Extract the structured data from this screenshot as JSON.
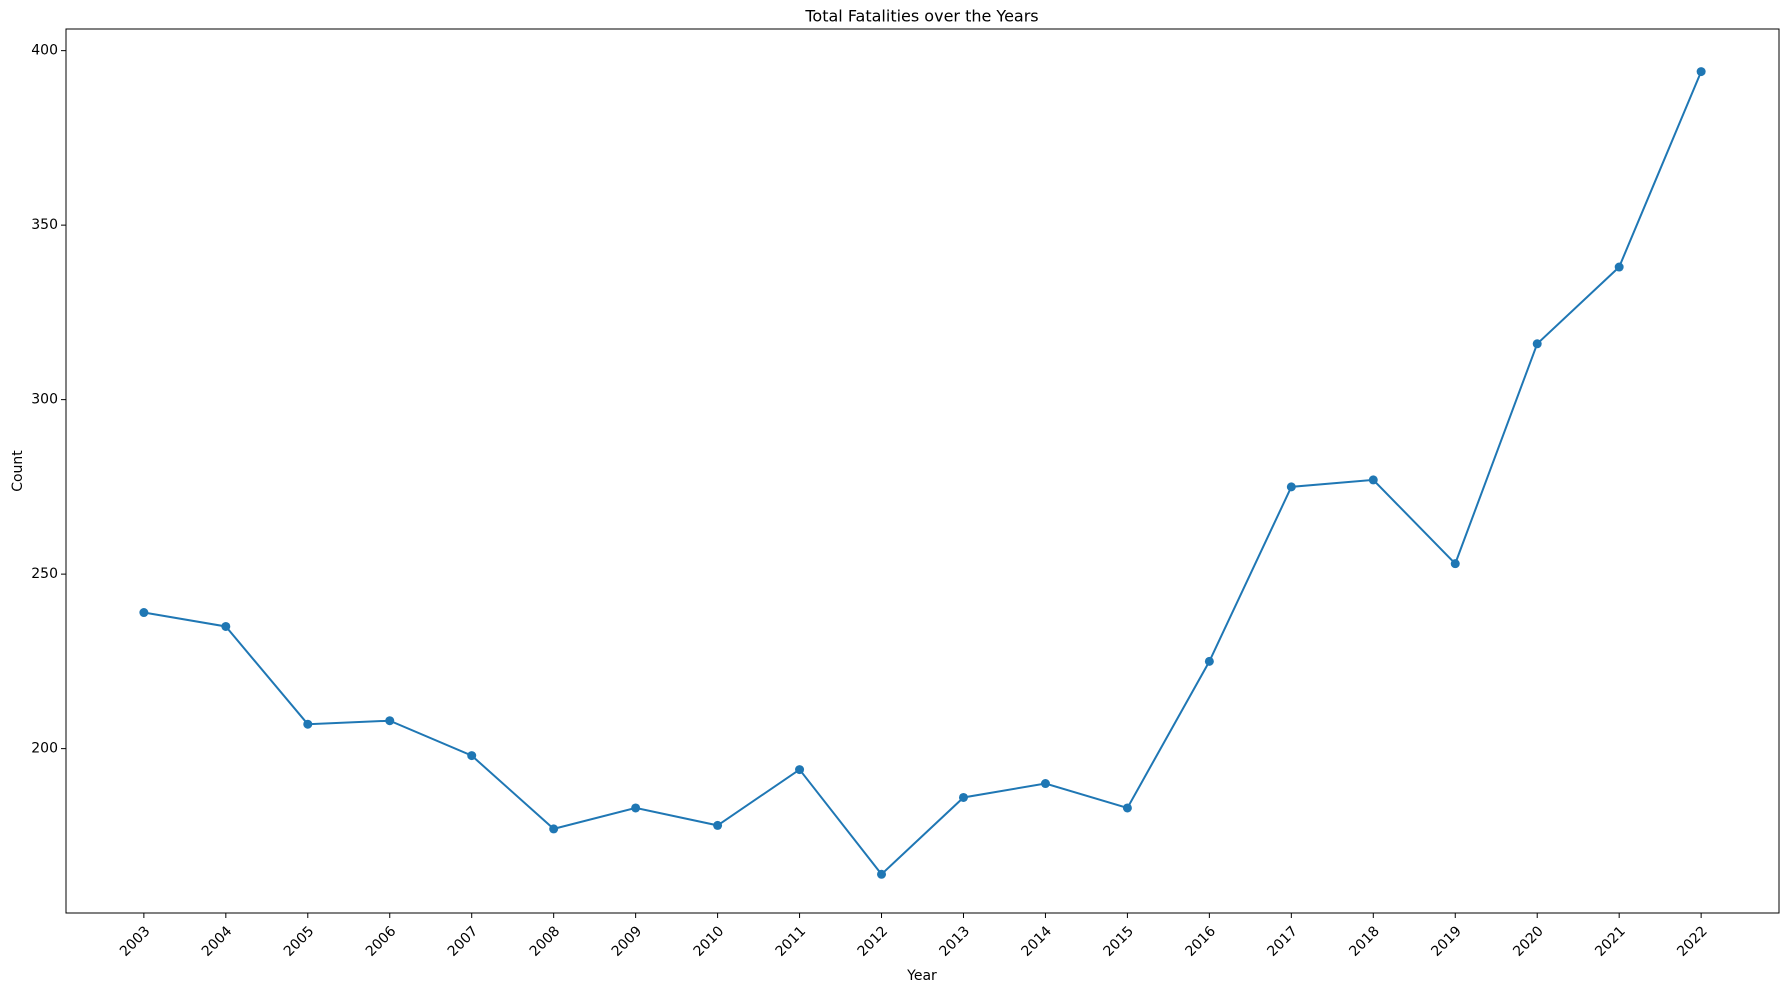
{
  "chart_data": {
    "type": "line",
    "title": "Total Fatalities over the Years",
    "x_label": "Year",
    "y_label": "Count",
    "categories": [
      "2003",
      "2004",
      "2005",
      "2006",
      "2007",
      "2008",
      "2009",
      "2010",
      "2011",
      "2012",
      "2013",
      "2014",
      "2015",
      "2016",
      "2017",
      "2018",
      "2019",
      "2020",
      "2021",
      "2022"
    ],
    "values": [
      239,
      235,
      207,
      208,
      198,
      177,
      183,
      178,
      194,
      164,
      186,
      190,
      183,
      225,
      275,
      277,
      253,
      316,
      338,
      394
    ],
    "color": "#1f77b4",
    "ylim": [
      152.9,
      406.2
    ],
    "yticks": [
      200,
      250,
      300,
      350,
      400
    ],
    "grid": false
  }
}
